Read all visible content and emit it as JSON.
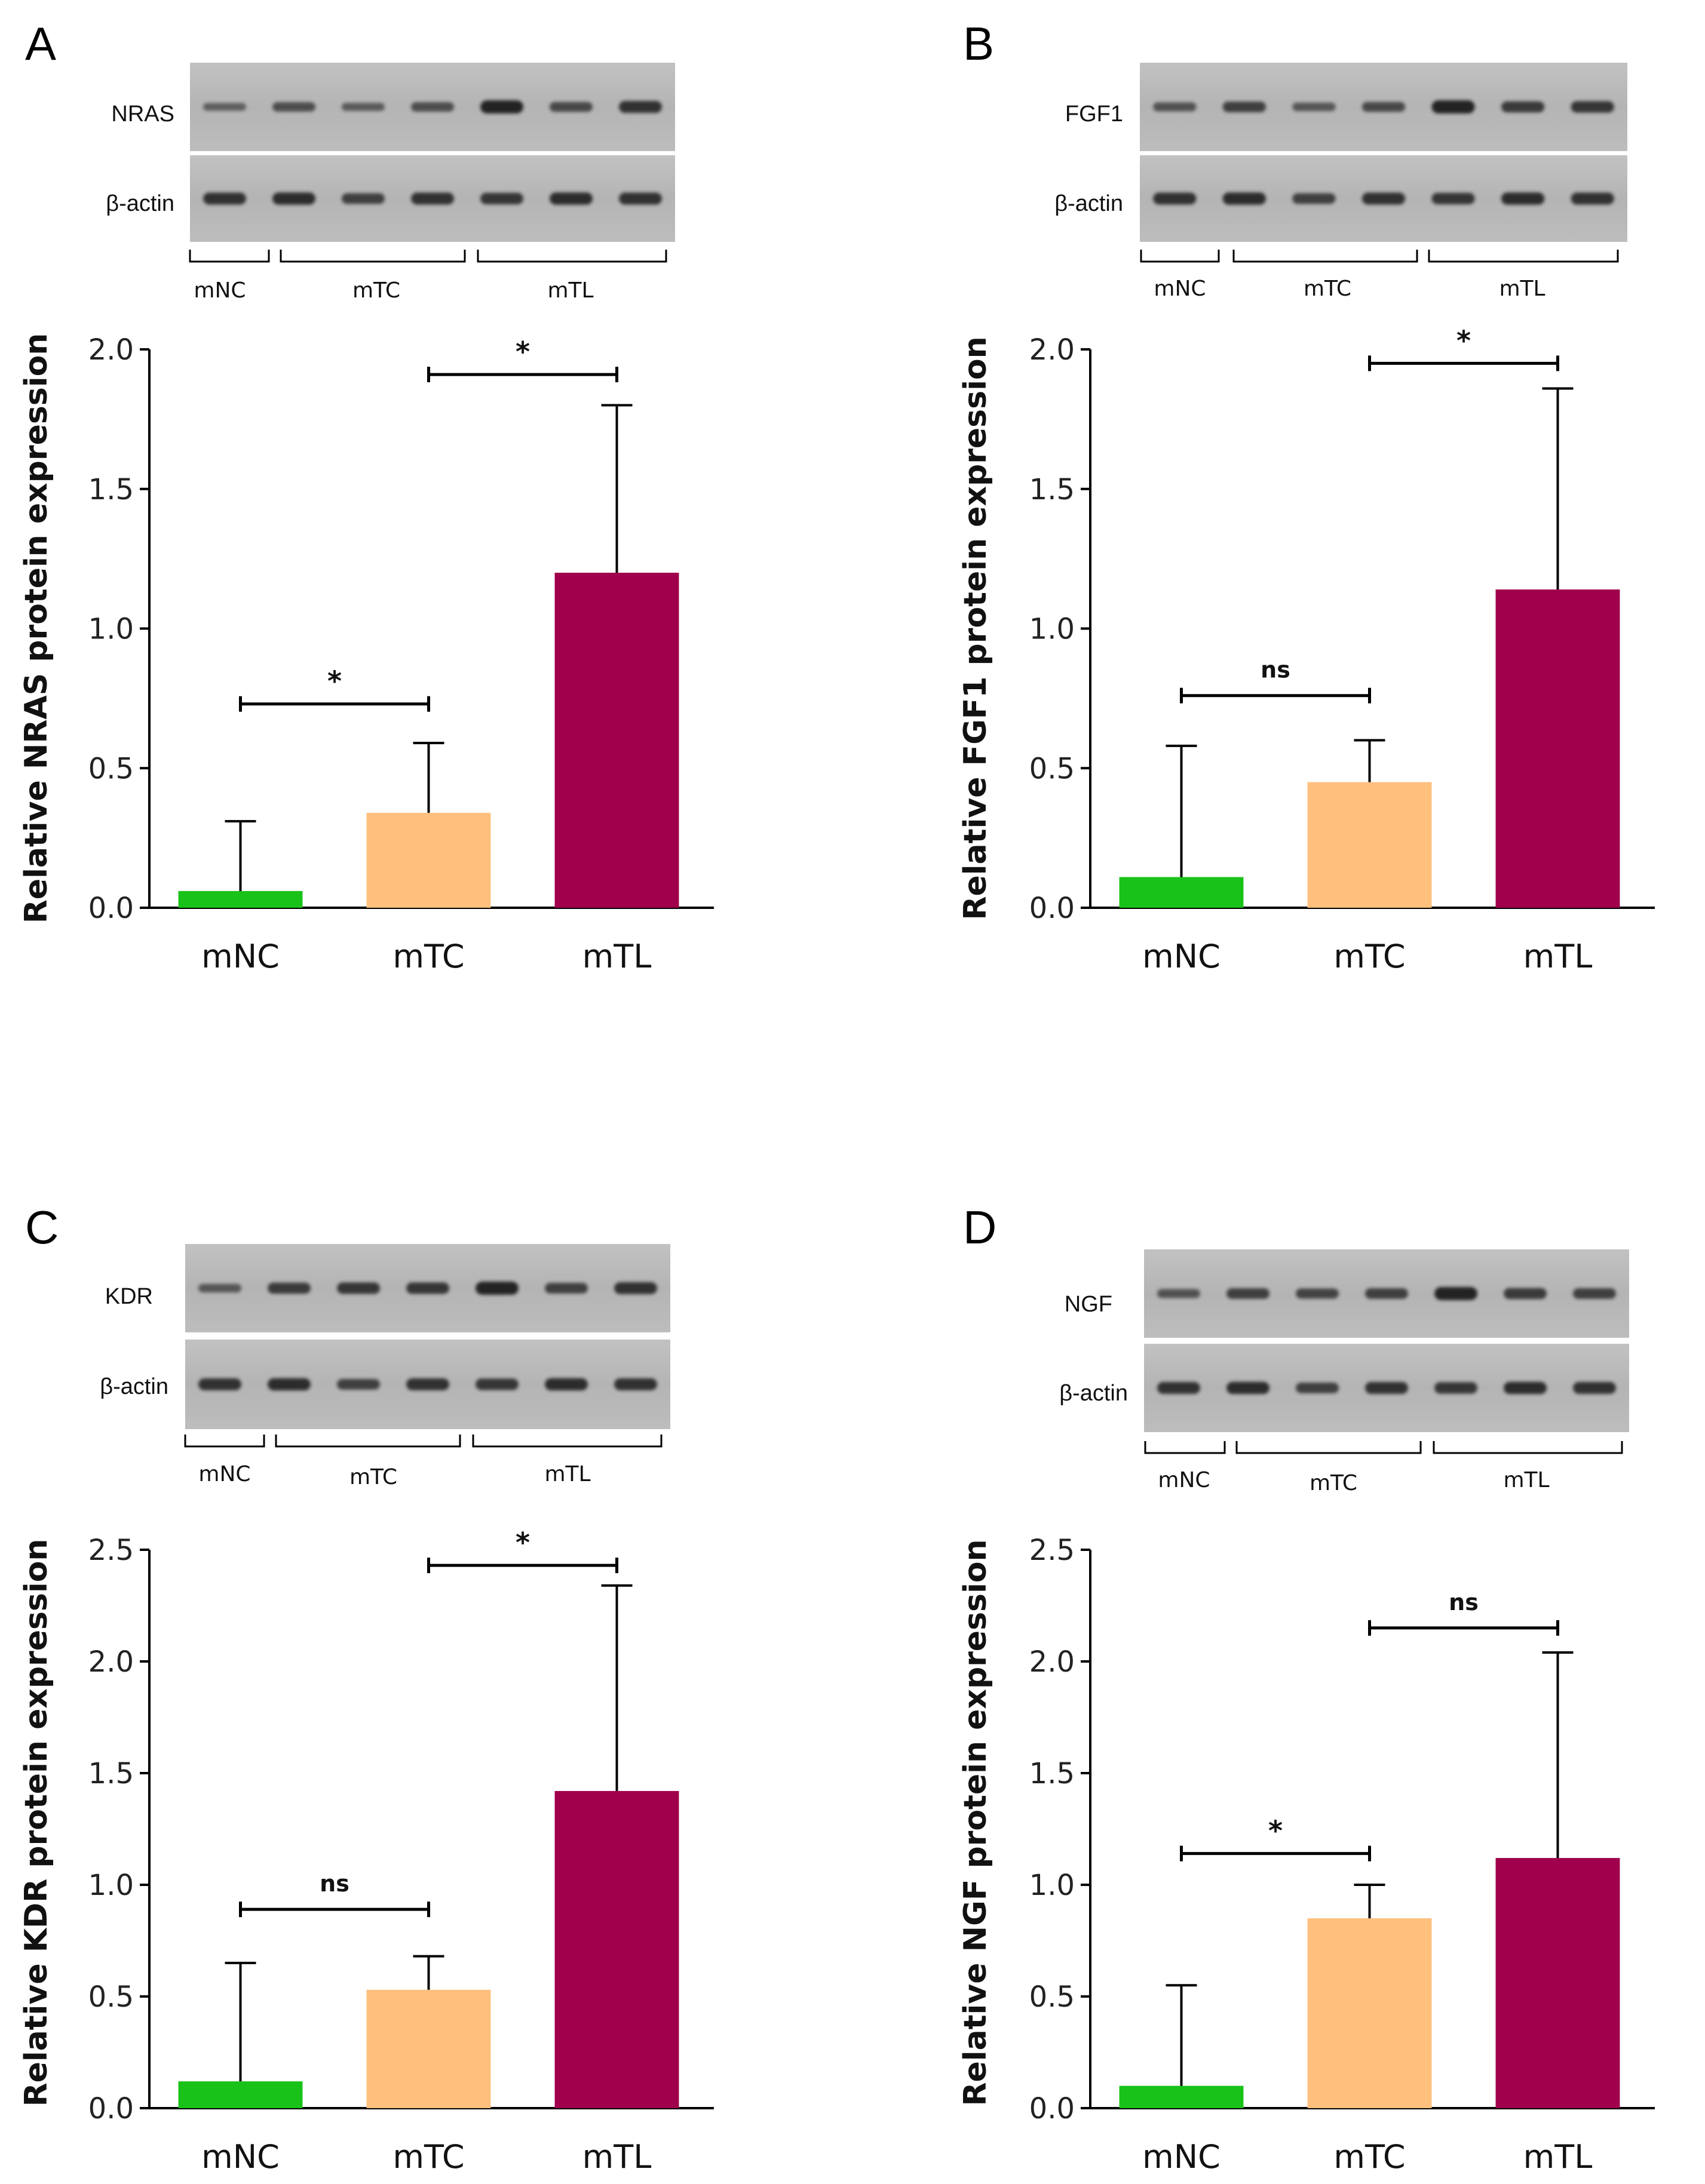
{
  "colors": {
    "mNC": "#19c219",
    "mTC": "#ffc07e",
    "mTL": "#a0004c"
  },
  "chart_data": [
    {
      "panel": "A",
      "type": "bar",
      "blot_labels": [
        "NRAS",
        "β-actin"
      ],
      "blot_groups": [
        "mNC",
        "mTC",
        "mTL"
      ],
      "blot_intensity": [
        0.35,
        0.55,
        0.4,
        0.55,
        1.0,
        0.6,
        0.85
      ],
      "categories": [
        "mNC",
        "mTC",
        "mTL"
      ],
      "values": [
        0.06,
        0.34,
        1.2
      ],
      "errors": [
        0.25,
        0.25,
        0.6
      ],
      "ylabel": "Relative NRAS protein expression",
      "ylim": [
        0,
        2.0
      ],
      "yticks": [
        "0.0",
        "0.5",
        "1.0",
        "1.5",
        "2.0"
      ],
      "significance": [
        {
          "from": 0,
          "to": 1,
          "label": "*",
          "y": 0.73
        },
        {
          "from": 1,
          "to": 2,
          "label": "*",
          "y": 1.91
        }
      ]
    },
    {
      "panel": "B",
      "type": "bar",
      "blot_labels": [
        "FGF1",
        "β-actin"
      ],
      "blot_groups": [
        "mNC",
        "mTC",
        "mTL"
      ],
      "blot_intensity": [
        0.5,
        0.7,
        0.45,
        0.6,
        1.0,
        0.75,
        0.8
      ],
      "categories": [
        "mNC",
        "mTC",
        "mTL"
      ],
      "values": [
        0.11,
        0.45,
        1.14
      ],
      "errors": [
        0.47,
        0.15,
        0.72
      ],
      "ylabel": "Relative FGF1 protein expression",
      "ylim": [
        0,
        2.0
      ],
      "yticks": [
        "0.0",
        "0.5",
        "1.0",
        "1.5",
        "2.0"
      ],
      "significance": [
        {
          "from": 0,
          "to": 1,
          "label": "ns",
          "y": 0.76
        },
        {
          "from": 1,
          "to": 2,
          "label": "*",
          "y": 1.95
        }
      ]
    },
    {
      "panel": "C",
      "type": "bar",
      "blot_labels": [
        "KDR",
        "β-actin"
      ],
      "blot_groups": [
        "mNC",
        "mTC",
        "mTL"
      ],
      "blot_intensity": [
        0.45,
        0.75,
        0.8,
        0.8,
        1.0,
        0.7,
        0.85
      ],
      "categories": [
        "mNC",
        "mTC",
        "mTL"
      ],
      "values": [
        0.12,
        0.53,
        1.42
      ],
      "errors": [
        0.53,
        0.15,
        0.92
      ],
      "ylabel": "Relative KDR protein expression",
      "ylim": [
        0,
        2.5
      ],
      "yticks": [
        "0.0",
        "0.5",
        "1.0",
        "1.5",
        "2.0",
        "2.5"
      ],
      "significance": [
        {
          "from": 0,
          "to": 1,
          "label": "ns",
          "y": 0.89
        },
        {
          "from": 1,
          "to": 2,
          "label": "*",
          "y": 2.43
        }
      ]
    },
    {
      "panel": "D",
      "type": "bar",
      "blot_labels": [
        "NGF",
        "β-actin"
      ],
      "blot_groups": [
        "mNC",
        "mTC",
        "mTL"
      ],
      "blot_intensity": [
        0.5,
        0.7,
        0.65,
        0.7,
        1.0,
        0.75,
        0.7
      ],
      "categories": [
        "mNC",
        "mTC",
        "mTL"
      ],
      "values": [
        0.1,
        0.85,
        1.12
      ],
      "errors": [
        0.45,
        0.15,
        0.92
      ],
      "ylabel": "Relative NGF protein expression",
      "ylim": [
        0,
        2.5
      ],
      "yticks": [
        "0.0",
        "0.5",
        "1.0",
        "1.5",
        "2.0",
        "2.5"
      ],
      "significance": [
        {
          "from": 0,
          "to": 1,
          "label": "*",
          "y": 1.14
        },
        {
          "from": 1,
          "to": 2,
          "label": "ns",
          "y": 2.15
        }
      ]
    }
  ]
}
